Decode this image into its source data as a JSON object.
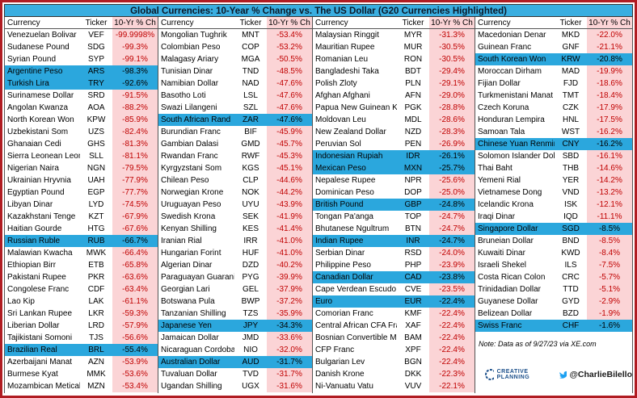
{
  "title": "Global Currencies: 10-Year % Change vs. The US Dollar (G20 Currencies Highlighted)",
  "header": [
    "Currency",
    "Ticker",
    "10-Yr % Ch"
  ],
  "colors": {
    "title_bar": "#3aaee0",
    "highlight": "#2ba7dd",
    "change_column": "#fbd4d6",
    "change_text": "#c00000",
    "frame": "#b01c22"
  },
  "groups": [
    {
      "highlighted_rows": [
        3,
        4,
        17,
        26
      ],
      "rows": [
        [
          "Venezuelan Bolivar",
          "VEF",
          "-99.9998%"
        ],
        [
          "Sudanese Pound",
          "SDG",
          "-99.3%"
        ],
        [
          "Syrian Pound",
          "SYP",
          "-99.1%"
        ],
        [
          "Argentine Peso",
          "ARS",
          "-98.3%"
        ],
        [
          "Turkish Lira",
          "TRY",
          "-92.6%"
        ],
        [
          "Surinamese Dollar",
          "SRD",
          "-91.5%"
        ],
        [
          "Angolan Kwanza",
          "AOA",
          "-88.2%"
        ],
        [
          "North Korean Won",
          "KPW",
          "-85.9%"
        ],
        [
          "Uzbekistani Som",
          "UZS",
          "-82.4%"
        ],
        [
          "Ghanaian Cedi",
          "GHS",
          "-81.3%"
        ],
        [
          "Sierra Leonean Leone",
          "SLL",
          "-81.1%"
        ],
        [
          "Nigerian Naira",
          "NGN",
          "-79.5%"
        ],
        [
          "Ukrainian Hryvnia",
          "UAH",
          "-77.9%"
        ],
        [
          "Egyptian Pound",
          "EGP",
          "-77.7%"
        ],
        [
          "Libyan Dinar",
          "LYD",
          "-74.5%"
        ],
        [
          "Kazakhstani Tenge",
          "KZT",
          "-67.9%"
        ],
        [
          "Haitian Gourde",
          "HTG",
          "-67.6%"
        ],
        [
          "Russian Ruble",
          "RUB",
          "-66.7%"
        ],
        [
          "Malawian Kwacha",
          "MWK",
          "-66.4%"
        ],
        [
          "Ethiopian Birr",
          "ETB",
          "-65.8%"
        ],
        [
          "Pakistani Rupee",
          "PKR",
          "-63.6%"
        ],
        [
          "Congolese Franc",
          "CDF",
          "-63.4%"
        ],
        [
          "Lao Kip",
          "LAK",
          "-61.1%"
        ],
        [
          "Sri Lankan Rupee",
          "LKR",
          "-59.3%"
        ],
        [
          "Liberian Dollar",
          "LRD",
          "-57.9%"
        ],
        [
          "Tajikistani Somoni",
          "TJS",
          "-56.6%"
        ],
        [
          "Brazilian Real",
          "BRL",
          "-55.4%"
        ],
        [
          "Azerbaijani Manat",
          "AZN",
          "-53.9%"
        ],
        [
          "Burmese Kyat",
          "MMK",
          "-53.6%"
        ],
        [
          "Mozambican Metical",
          "MZN",
          "-53.4%"
        ]
      ]
    },
    {
      "highlighted_rows": [
        7,
        24,
        27
      ],
      "rows": [
        [
          "Mongolian Tughrik",
          "MNT",
          "-53.4%"
        ],
        [
          "Colombian Peso",
          "COP",
          "-53.2%"
        ],
        [
          "Malagasy Ariary",
          "MGA",
          "-50.5%"
        ],
        [
          "Tunisian Dinar",
          "TND",
          "-48.5%"
        ],
        [
          "Namibian Dollar",
          "NAD",
          "-47.6%"
        ],
        [
          "Basotho Loti",
          "LSL",
          "-47.6%"
        ],
        [
          "Swazi Lilangeni",
          "SZL",
          "-47.6%"
        ],
        [
          "South African Rand",
          "ZAR",
          "-47.6%"
        ],
        [
          "Burundian Franc",
          "BIF",
          "-45.9%"
        ],
        [
          "Gambian Dalasi",
          "GMD",
          "-45.7%"
        ],
        [
          "Rwandan Franc",
          "RWF",
          "-45.3%"
        ],
        [
          "Kyrgyzstani Som",
          "KGS",
          "-45.1%"
        ],
        [
          "Chilean Peso",
          "CLP",
          "-44.6%"
        ],
        [
          "Norwegian Krone",
          "NOK",
          "-44.2%"
        ],
        [
          "Uruguayan Peso",
          "UYU",
          "-43.9%"
        ],
        [
          "Swedish Krona",
          "SEK",
          "-41.9%"
        ],
        [
          "Kenyan Shilling",
          "KES",
          "-41.4%"
        ],
        [
          "Iranian Rial",
          "IRR",
          "-41.0%"
        ],
        [
          "Hungarian Forint",
          "HUF",
          "-41.0%"
        ],
        [
          "Algerian Dinar",
          "DZD",
          "-40.2%"
        ],
        [
          "Paraguayan Guarani",
          "PYG",
          "-39.9%"
        ],
        [
          "Georgian Lari",
          "GEL",
          "-37.9%"
        ],
        [
          "Botswana Pula",
          "BWP",
          "-37.2%"
        ],
        [
          "Tanzanian Shilling",
          "TZS",
          "-35.9%"
        ],
        [
          "Japanese Yen",
          "JPY",
          "-34.3%"
        ],
        [
          "Jamaican Dollar",
          "JMD",
          "-33.6%"
        ],
        [
          "Nicaraguan Cordoba",
          "NIO",
          "-32.0%"
        ],
        [
          "Australian Dollar",
          "AUD",
          "-31.7%"
        ],
        [
          "Tuvaluan Dollar",
          "TVD",
          "-31.7%"
        ],
        [
          "Ugandan Shilling",
          "UGX",
          "-31.6%"
        ]
      ]
    },
    {
      "highlighted_rows": [
        10,
        11,
        14,
        17,
        20,
        22
      ],
      "rows": [
        [
          "Malaysian Ringgit",
          "MYR",
          "-31.3%"
        ],
        [
          "Mauritian Rupee",
          "MUR",
          "-30.5%"
        ],
        [
          "Romanian Leu",
          "RON",
          "-30.5%"
        ],
        [
          "Bangladeshi Taka",
          "BDT",
          "-29.4%"
        ],
        [
          "Polish Zloty",
          "PLN",
          "-29.1%"
        ],
        [
          "Afghan Afghani",
          "AFN",
          "-29.0%"
        ],
        [
          "Papua New Guinean Kina",
          "PGK",
          "-28.8%"
        ],
        [
          "Moldovan Leu",
          "MDL",
          "-28.6%"
        ],
        [
          "New Zealand Dollar",
          "NZD",
          "-28.3%"
        ],
        [
          "Peruvian Sol",
          "PEN",
          "-26.9%"
        ],
        [
          "Indonesian Rupiah",
          "IDR",
          "-26.1%"
        ],
        [
          "Mexican Peso",
          "MXN",
          "-25.7%"
        ],
        [
          "Nepalese Rupee",
          "NPR",
          "-25.6%"
        ],
        [
          "Dominican Peso",
          "DOP",
          "-25.0%"
        ],
        [
          "British Pound",
          "GBP",
          "-24.8%"
        ],
        [
          "Tongan Pa'anga",
          "TOP",
          "-24.7%"
        ],
        [
          "Bhutanese Ngultrum",
          "BTN",
          "-24.7%"
        ],
        [
          "Indian Rupee",
          "INR",
          "-24.7%"
        ],
        [
          "Serbian Dinar",
          "RSD",
          "-24.0%"
        ],
        [
          "Philippine Peso",
          "PHP",
          "-23.9%"
        ],
        [
          "Canadian Dollar",
          "CAD",
          "-23.8%"
        ],
        [
          "Cape Verdean Escudo",
          "CVE",
          "-23.5%"
        ],
        [
          "Euro",
          "EUR",
          "-22.4%"
        ],
        [
          "Comorian Franc",
          "KMF",
          "-22.4%"
        ],
        [
          "Central African CFA Franc",
          "XAF",
          "-22.4%"
        ],
        [
          "Bosnian Convertible Mark",
          "BAM",
          "-22.4%"
        ],
        [
          "CFP Franc",
          "XPF",
          "-22.4%"
        ],
        [
          "Bulgarian Lev",
          "BGN",
          "-22.4%"
        ],
        [
          "Danish Krone",
          "DKK",
          "-22.3%"
        ],
        [
          "Ni-Vanuatu Vatu",
          "VUV",
          "-22.1%"
        ]
      ]
    },
    {
      "highlighted_rows": [
        2,
        9,
        16,
        24
      ],
      "rows": [
        [
          "Macedonian Denar",
          "MKD",
          "-22.0%"
        ],
        [
          "Guinean Franc",
          "GNF",
          "-21.1%"
        ],
        [
          "South Korean Won",
          "KRW",
          "-20.8%"
        ],
        [
          "Moroccan Dirham",
          "MAD",
          "-19.9%"
        ],
        [
          "Fijian Dollar",
          "FJD",
          "-18.6%"
        ],
        [
          "Turkmenistani Manat",
          "TMT",
          "-18.4%"
        ],
        [
          "Czech Koruna",
          "CZK",
          "-17.9%"
        ],
        [
          "Honduran Lempira",
          "HNL",
          "-17.5%"
        ],
        [
          "Samoan Tala",
          "WST",
          "-16.2%"
        ],
        [
          "Chinese Yuan Renminbi",
          "CNY",
          "-16.2%"
        ],
        [
          "Solomon Islander Dollar",
          "SBD",
          "-16.1%"
        ],
        [
          "Thai Baht",
          "THB",
          "-14.6%"
        ],
        [
          "Yemeni Rial",
          "YER",
          "-14.2%"
        ],
        [
          "Vietnamese Dong",
          "VND",
          "-13.2%"
        ],
        [
          "Icelandic Krona",
          "ISK",
          "-12.1%"
        ],
        [
          "Iraqi Dinar",
          "IQD",
          "-11.1%"
        ],
        [
          "Singapore Dollar",
          "SGD",
          "-8.5%"
        ],
        [
          "Bruneian Dollar",
          "BND",
          "-8.5%"
        ],
        [
          "Kuwaiti Dinar",
          "KWD",
          "-8.4%"
        ],
        [
          "Israeli Shekel",
          "ILS",
          "-7.5%"
        ],
        [
          "Costa Rican Colon",
          "CRC",
          "-5.7%"
        ],
        [
          "Trinidadian Dollar",
          "TTD",
          "-5.1%"
        ],
        [
          "Guyanese Dollar",
          "GYD",
          "-2.9%"
        ],
        [
          "Belizean Dollar",
          "BZD",
          "-1.9%"
        ],
        [
          "Swiss Franc",
          "CHF",
          "-1.6%"
        ]
      ]
    }
  ],
  "note": "Note: Data as of 9/27/23 via XE.com",
  "brand": "CREATIVE PLANNING",
  "handle": "@CharlieBilello"
}
